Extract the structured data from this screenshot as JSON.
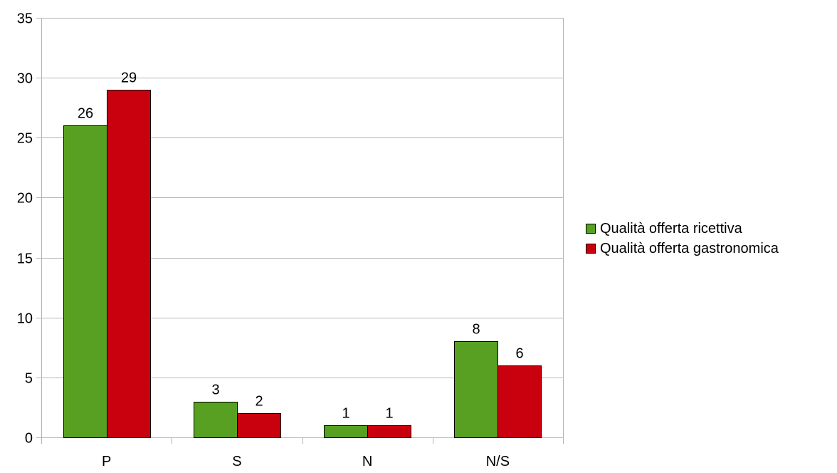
{
  "chart_data": {
    "type": "bar",
    "categories": [
      "P",
      "S",
      "N",
      "N/S"
    ],
    "series": [
      {
        "name": "Qualità offerta ricettiva",
        "values": [
          26,
          3,
          1,
          8
        ],
        "color": "#57a021"
      },
      {
        "name": "Qualità offerta gastronomica",
        "values": [
          29,
          2,
          1,
          6
        ],
        "color": "#c9000e"
      }
    ],
    "ylim": [
      0,
      35
    ],
    "yticks": [
      0,
      5,
      10,
      15,
      20,
      25,
      30,
      35
    ],
    "grid": true,
    "legend_position": "right",
    "data_labels": true
  }
}
